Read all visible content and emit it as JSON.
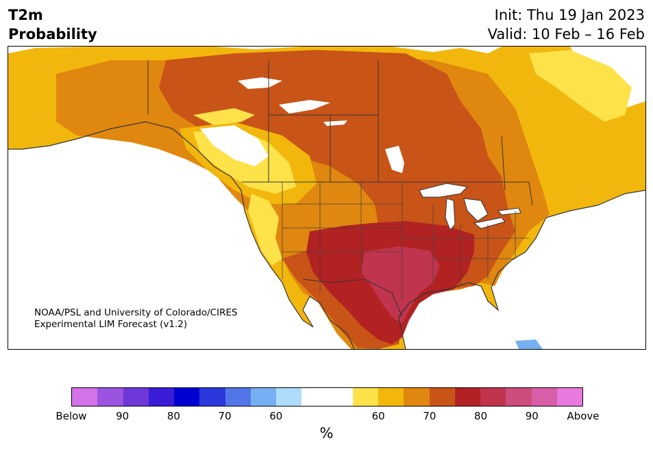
{
  "header": {
    "title_line1": "T2m",
    "title_line2": "Probability",
    "init": "Init: Thu 19 Jan 2023",
    "valid": "Valid: 10 Feb – 16 Feb"
  },
  "credit": {
    "line1": "NOAA/PSL and University of Colorado/CIRES",
    "line2": "Experimental LIM Forecast (v1.2)"
  },
  "colorbar": {
    "colors": [
      "#d472e8",
      "#9b54e0",
      "#6e38d8",
      "#3a1cd6",
      "#0000d0",
      "#2a38dc",
      "#5276e8",
      "#76b0f2",
      "#aedcfa",
      "#ffffff",
      "#ffffff",
      "#fde24a",
      "#f2b70c",
      "#e0870f",
      "#c85418",
      "#b22222",
      "#c0344e",
      "#cc4d7c",
      "#d95ea8",
      "#e87ade"
    ],
    "tick_labels": [
      "Below",
      "90",
      "80",
      "70",
      "60",
      "60",
      "70",
      "80",
      "90",
      "Above"
    ],
    "unit": "%"
  },
  "map_colors": {
    "ocean": "#ffffff",
    "p50": "#ffffff",
    "p60": "#fde24a",
    "p65": "#f2b70c",
    "p70": "#e0870f",
    "p75": "#c85418",
    "p80": "#b22222",
    "p85": "#c0344e",
    "blue": "#76b0f2",
    "border": "#333333"
  }
}
